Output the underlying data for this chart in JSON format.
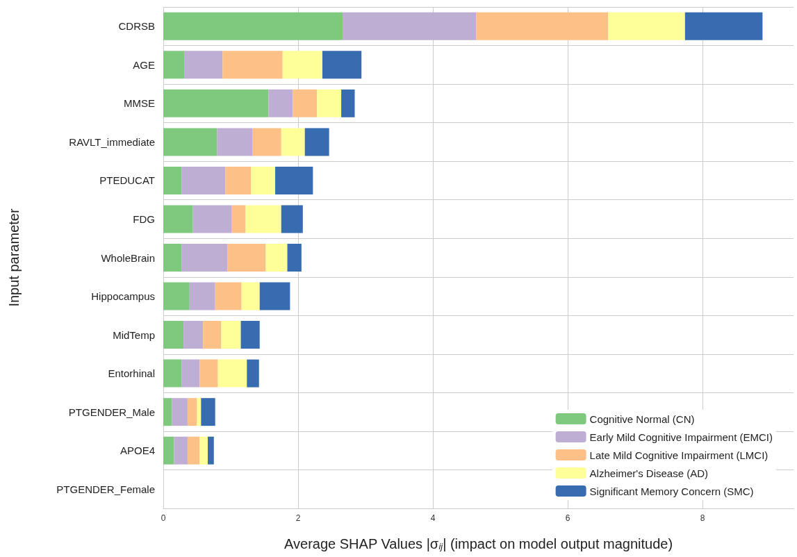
{
  "chart_data": {
    "type": "bar",
    "orientation": "horizontal",
    "stacked": true,
    "xlabel": "Average SHAP Values |σ$_{ij}$| (impact on model output magnitude)",
    "ylabel": "Input parameter",
    "categories": [
      "CDRSB",
      "AGE",
      "MMSE",
      "RAVLT_immediate",
      "PTEDUCAT",
      "FDG",
      "WholeBrain",
      "Hippocampus",
      "MidTemp",
      "Entorhinal",
      "PTGENDER_Male",
      "APOE4",
      "PTGENDER_Female"
    ],
    "series": [
      {
        "name": "Cognitive Normal (CN)",
        "color": "#7fc97f",
        "values": [
          2.66,
          0.31,
          1.56,
          0.8,
          0.27,
          0.44,
          0.27,
          0.39,
          0.3,
          0.27,
          0.13,
          0.16,
          0
        ]
      },
      {
        "name": "Early Mild Cognitive Impairment (EMCI)",
        "color": "#beaed4",
        "values": [
          1.98,
          0.57,
          0.36,
          0.52,
          0.65,
          0.57,
          0.68,
          0.38,
          0.29,
          0.27,
          0.23,
          0.2,
          0
        ]
      },
      {
        "name": "Late Mild Cognitive Impairment (LMCI)",
        "color": "#fdc086",
        "values": [
          1.96,
          0.89,
          0.36,
          0.43,
          0.38,
          0.21,
          0.57,
          0.39,
          0.27,
          0.27,
          0.14,
          0.18,
          0
        ]
      },
      {
        "name": "Alzheimer's Disease (AD)",
        "color": "#ffff99",
        "values": [
          1.14,
          0.59,
          0.36,
          0.35,
          0.36,
          0.53,
          0.32,
          0.27,
          0.29,
          0.43,
          0.06,
          0.12,
          0
        ]
      },
      {
        "name": "Significant Memory Concern (SMC)",
        "color": "#386cb0",
        "values": [
          1.15,
          0.58,
          0.2,
          0.36,
          0.56,
          0.32,
          0.21,
          0.45,
          0.28,
          0.18,
          0.21,
          0.09,
          0
        ]
      }
    ],
    "xlim": [
      0,
      9.35
    ],
    "xticks": [
      0,
      2,
      4,
      6,
      8
    ],
    "grid": true,
    "legend": "bottom right"
  }
}
